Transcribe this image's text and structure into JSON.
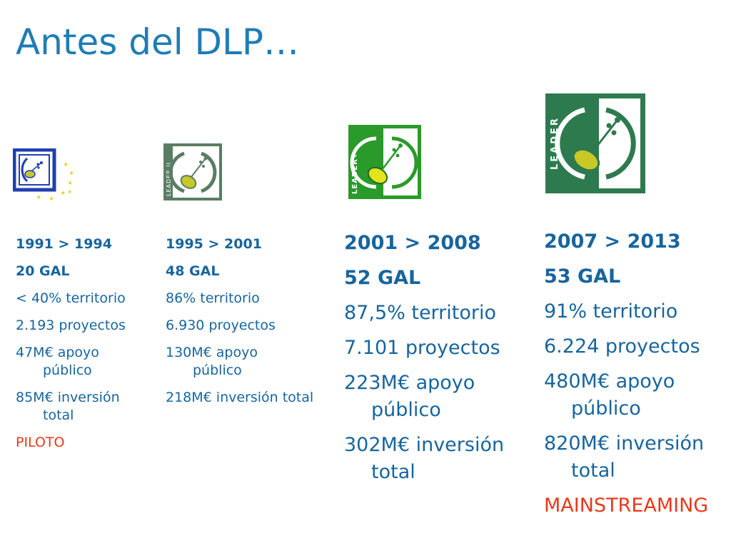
{
  "title": "Antes del DLP…",
  "columns": [
    {
      "period": "1991 > 1994",
      "gal": "20 GAL",
      "territorio": "< 40% territorio",
      "proyectos": "2.193 proyectos",
      "apoyo": "47M€ apoyo público",
      "inversion": "85M€ inversión total",
      "tag": "PILOTO"
    },
    {
      "period": "1995 > 2001",
      "gal": "48 GAL",
      "territorio": "86% territorio",
      "proyectos": "6.930 proyectos",
      "apoyo": "130M€ apoyo público",
      "inversion": "218M€ inversión total"
    },
    {
      "period": "2001 > 2008",
      "gal": "52 GAL",
      "territorio": "87,5% territorio",
      "proyectos": "7.101 proyectos",
      "apoyo": "223M€ apoyo público",
      "inversion": "302M€ inversión total"
    },
    {
      "period": "2007 > 2013",
      "gal": "53 GAL",
      "territorio": "91% territorio",
      "proyectos": "6.224 proyectos",
      "apoyo": "480M€ apoyo público",
      "inversion": "820M€ inversión total",
      "tag": "MAINSTREAMING"
    }
  ],
  "logos": [
    {
      "name": "leader-i-logo",
      "text": ""
    },
    {
      "name": "leader-ii-logo",
      "text": "LEADER II"
    },
    {
      "name": "leader-plus-logo",
      "text": "LEADER+"
    },
    {
      "name": "leader-logo",
      "text": "LEADER"
    }
  ],
  "colors": {
    "title": "#1f7db5",
    "text": "#17659e",
    "highlight": "#e8391b",
    "leader_i_blue": "#1f3fb0",
    "leader_ii_green": "#5a7d63",
    "leader_plus_green": "#2a9a2a",
    "leader_green": "#2e7a4f",
    "seed_yellow": "#c8c826"
  }
}
